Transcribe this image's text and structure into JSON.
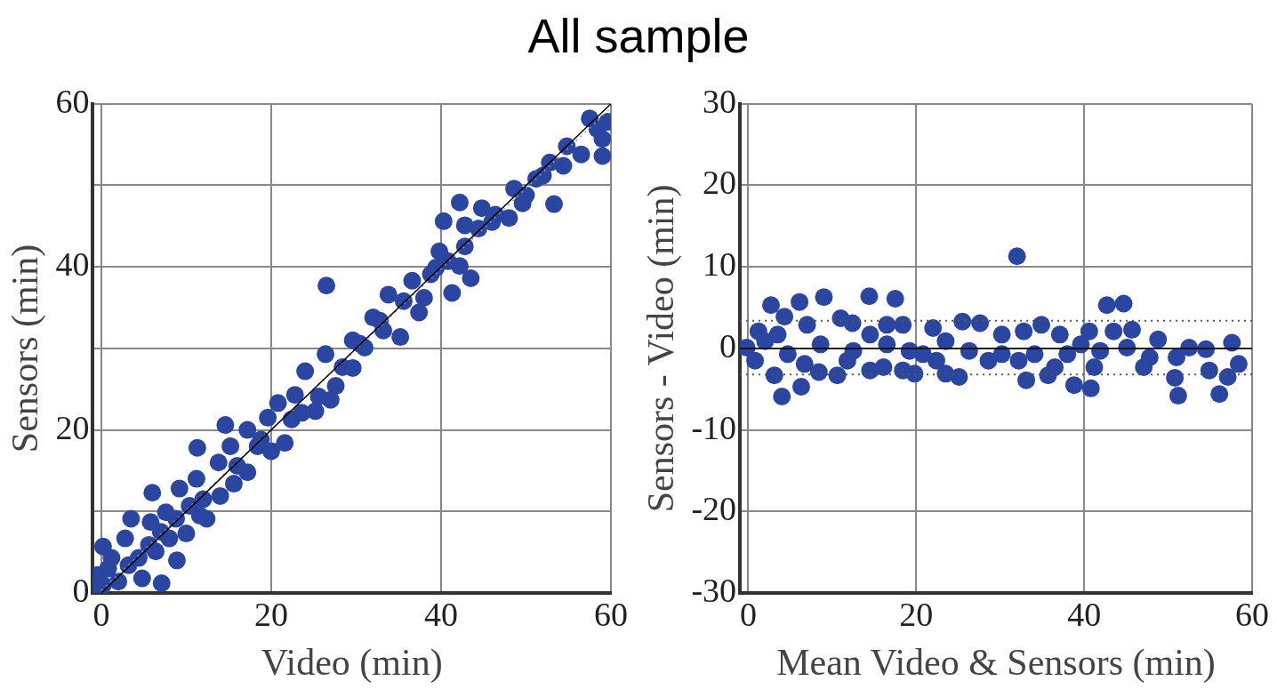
{
  "chart_data": [
    {
      "type": "scatter",
      "title": "All sample",
      "xlabel": "Video (min)",
      "ylabel": "Sensors (min)",
      "xlim": [
        -1,
        60
      ],
      "ylim": [
        0,
        60
      ],
      "xticks": [
        0,
        20,
        40,
        60
      ],
      "yticks": [
        0,
        {
          "value": 10,
          "label": null
        },
        20,
        {
          "value": 30,
          "label": null
        },
        40,
        {
          "value": 50,
          "label": null
        },
        60
      ],
      "grid": true,
      "series": [
        {
          "type": "line",
          "color": "#000000",
          "line_style": "solid",
          "x": [
            0,
            60
          ],
          "values": [
            0,
            60
          ]
        },
        {
          "type": "line",
          "color": "#999999",
          "line_style": "dotted",
          "x": [
            0,
            60
          ],
          "values": [
            0.3,
            59.5
          ]
        },
        {
          "marker": "circle",
          "color": "#2b46a0",
          "x": [
            26.5,
            14.6,
            11.3,
            6,
            3.5,
            8.9,
            7.1,
            40.3,
            42.2,
            43.5,
            41.3,
            53.3,
            59,
            57.5,
            59.6,
            56.5,
            54.8,
            52.8,
            54.4,
            51.2,
            48.6,
            49.6,
            48,
            44.8,
            42.8,
            46.4,
            42.8,
            39.8,
            39.4,
            42.2,
            36.6,
            38,
            37.4,
            33.8,
            32,
            35.2,
            33.2,
            29.6,
            31,
            26.4,
            29.6,
            24,
            27.6,
            22.8,
            27,
            25.2,
            23.6,
            20.8,
            19.6,
            21.6,
            20,
            18.4,
            17.2,
            17.2,
            15.6,
            15.2,
            13.8,
            14,
            11.2,
            9.2,
            12.4,
            10,
            7.6,
            5.8,
            8,
            6.4,
            2.8,
            4.4,
            0.2,
            4.8,
            2,
            0.2,
            0.8,
            3.2,
            10.4,
            12,
            8.8,
            11.6,
            16,
            18.8,
            22.4,
            25.6,
            28.4,
            30.4,
            32.8,
            35.6,
            38.8,
            40.8,
            44.4,
            46,
            50,
            52,
            58.4,
            59,
            -0.8,
            -0.4,
            1.2,
            5.6,
            7
          ],
          "values": [
            37.7,
            20.6,
            17.8,
            12.3,
            9.1,
            4,
            1.2,
            45.6,
            47.9,
            38.6,
            36.8,
            47.7,
            53.6,
            58.2,
            57.8,
            53.8,
            54.8,
            52.8,
            52.4,
            50.8,
            49.6,
            47.8,
            46,
            47.2,
            45.1,
            46.4,
            42.5,
            41.9,
            39.9,
            40.1,
            38.3,
            36.2,
            34.4,
            36.6,
            33.8,
            31.4,
            32.2,
            31,
            30.1,
            29.3,
            27.6,
            27.2,
            25.4,
            24.3,
            23.7,
            22.3,
            22.1,
            23.3,
            21.5,
            18.4,
            17.4,
            18,
            20,
            14.8,
            13.4,
            18,
            16,
            11.9,
            14,
            12.8,
            9.1,
            7.3,
            9.9,
            8.7,
            6.7,
            5.1,
            6.7,
            4.3,
            5.7,
            1.8,
            1.4,
            1,
            3,
            3.4,
            10.7,
            11.5,
            9.1,
            9.5,
            15.6,
            18.8,
            21.3,
            24.1,
            27.7,
            30.6,
            33.4,
            35.8,
            39.1,
            40.7,
            44.7,
            45.5,
            48.8,
            51.2,
            56.9,
            55.7,
            0.6,
            2.2,
            4.3,
            5.9,
            7.5
          ]
        }
      ]
    },
    {
      "type": "scatter",
      "xlabel": "Mean Video & Sensors (min)",
      "ylabel": "Sensors - Video (min)",
      "xlim": [
        -1,
        60
      ],
      "ylim": [
        -30,
        30
      ],
      "xticks": [
        0,
        20,
        40,
        60
      ],
      "yticks": [
        -30,
        -20,
        -10,
        0,
        10,
        20,
        30
      ],
      "grid": true,
      "ref_lines": [
        {
          "axis": "y",
          "value": 3.4,
          "color": "#555555",
          "line_style": "dotted"
        },
        {
          "axis": "y",
          "value": -3.2,
          "color": "#555555",
          "line_style": "dotted"
        }
      ],
      "series": [
        {
          "marker": "circle",
          "color": "#2b46a0",
          "x": [
            32,
            2.7,
            6.1,
            9,
            14.4,
            17.5,
            42.7,
            44.7,
            4,
            6.3,
            3.1,
            8.4,
            10.6,
            38.8,
            40.8,
            51.2,
            56.1,
            50.8,
            57.1,
            58.4,
            57.6,
            48.8,
            40.6,
            45.7,
            43.5,
            47.1,
            54.9,
            52.5,
            54.5,
            51,
            33.1,
            35.7,
            34.9,
            37.1,
            32.8,
            25.5,
            27.6,
            30.2,
            25.1,
            23.5,
            19.8,
            18.4,
            22,
            23.5,
            16.1,
            14.5,
            16.5,
            18.4,
            11,
            12.4,
            7,
            4.3,
            1.2,
            -0.2,
            0.8,
            4.7,
            8.6,
            12.5,
            16.5,
            20.8,
            26.3,
            28.6,
            34.1,
            38,
            39.6,
            41.9,
            45.1,
            47.8,
            41.2,
            6.7,
            14.5,
            22.4,
            30.2,
            32.2,
            36.5,
            2,
            3.5,
            11.8,
            19.2
          ],
          "values": [
            11.3,
            5.3,
            5.7,
            6.3,
            6.4,
            6.1,
            5.3,
            5.5,
            -5.9,
            -4.7,
            -3.3,
            -2.9,
            -3.3,
            -4.5,
            -4.9,
            -5.8,
            -5.6,
            -3.6,
            -3.5,
            -1.9,
            0.7,
            1.1,
            2.1,
            2.3,
            2.1,
            -2.3,
            -2.7,
            0.1,
            -0.1,
            -1.1,
            -3.9,
            -3.3,
            2.9,
            1.7,
            2.1,
            3.3,
            3.1,
            1.7,
            -3.5,
            -3.1,
            -3.1,
            -2.7,
            2.5,
            0.9,
            -2.3,
            -2.7,
            2.9,
            2.9,
            3.7,
            3.1,
            2.9,
            3.9,
            2.1,
            0.1,
            -1.5,
            -0.7,
            0.5,
            -0.3,
            0.5,
            -0.7,
            -0.3,
            -1.5,
            -0.7,
            -0.7,
            0.5,
            -0.3,
            0.1,
            -1.1,
            -2.3,
            -1.9,
            1.7,
            -1.5,
            -0.7,
            -1.5,
            -2.3,
            0.9,
            1.7,
            -1.5,
            -0.3
          ]
        },
        {
          "type": "line",
          "color": "#000000",
          "line_style": "solid",
          "x": [
            -1,
            60
          ],
          "values": [
            0,
            0
          ]
        }
      ]
    }
  ]
}
